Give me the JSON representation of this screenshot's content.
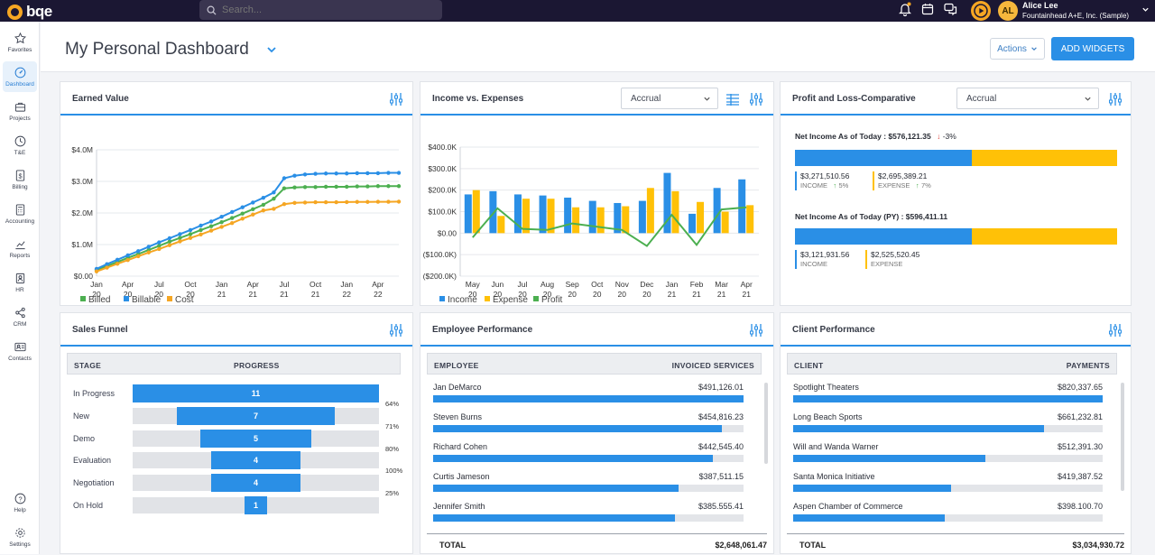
{
  "app": {
    "logo": "bqe",
    "search_placeholder": "Search...",
    "user_name": "Alice Lee",
    "company": "Fountainhead A+E, Inc. (Sample)",
    "initials": "AL"
  },
  "icons": {
    "notifications": "bell-icon",
    "calendar": "calendar-icon",
    "chat": "chat-icon",
    "play": "play-icon",
    "search": "search-icon"
  },
  "sidebar": {
    "items": [
      {
        "label": "Favorites",
        "icon": "star-icon"
      },
      {
        "label": "Dashboard",
        "icon": "dashboard-icon"
      },
      {
        "label": "Projects",
        "icon": "briefcase-icon"
      },
      {
        "label": "T&E",
        "icon": "clock-icon"
      },
      {
        "label": "Billing",
        "icon": "dollar-icon"
      },
      {
        "label": "Accounting",
        "icon": "calculator-icon"
      },
      {
        "label": "Reports",
        "icon": "chart-icon"
      },
      {
        "label": "HR",
        "icon": "id-badge-icon"
      },
      {
        "label": "CRM",
        "icon": "share-icon"
      },
      {
        "label": "Contacts",
        "icon": "contact-card-icon"
      }
    ],
    "bottom": [
      {
        "label": "Help",
        "icon": "help-icon"
      },
      {
        "label": "Settings",
        "icon": "gear-icon"
      }
    ]
  },
  "header": {
    "title": "My Personal Dashboard",
    "actions": "Actions",
    "add_widgets": "ADD WIDGETS"
  },
  "colors": {
    "accent": "#2a8fe6",
    "billed": "#4caf50",
    "billable": "#2a8fe6",
    "cost": "#f5a623",
    "income": "#2a8fe6",
    "expense": "#ffc107",
    "profit": "#4caf50",
    "dark": "#1b1733"
  },
  "widgets": {
    "earned_value": {
      "title": "Earned Value"
    },
    "income_expenses": {
      "title": "Income vs. Expenses",
      "basis": "Accrual"
    },
    "profit_loss": {
      "title": "Profit and Loss-Comparative",
      "basis": "Accrual",
      "current": {
        "label": "Net Income As of Today : $576,121.35",
        "change": "-3%",
        "income": "$3,271,510.56",
        "income_label": "INCOME",
        "income_change": "5%",
        "expense": "$2,695,389.21",
        "expense_label": "EXPENSE",
        "expense_change": "7%",
        "income_share": 0.55
      },
      "previous": {
        "label": "Net Income As of Today (PY) : $596,411.11",
        "income": "$3,121,931.56",
        "income_label": "INCOME",
        "expense": "$2,525,520.45",
        "expense_label": "EXPENSE",
        "income_share": 0.55
      }
    },
    "sales_funnel": {
      "title": "Sales Funnel",
      "col_stage": "STAGE",
      "col_progress": "PROGRESS",
      "rows": [
        {
          "stage": "In Progress",
          "count": "11",
          "pct": "64%",
          "fill": 1.0
        },
        {
          "stage": "New",
          "count": "7",
          "pct": "71%",
          "fill": 0.64
        },
        {
          "stage": "Demo",
          "count": "5",
          "pct": "80%",
          "fill": 0.45
        },
        {
          "stage": "Evaluation",
          "count": "4",
          "pct": "100%",
          "fill": 0.36
        },
        {
          "stage": "Negotiation",
          "count": "4",
          "pct": "25%",
          "fill": 0.36
        },
        {
          "stage": "On Hold",
          "count": "1",
          "pct": "",
          "fill": 0.09
        }
      ]
    },
    "employee_performance": {
      "title": "Employee Performance",
      "col_employee": "EMPLOYEE",
      "col_value": "INVOICED SERVICES",
      "rows": [
        {
          "name": "Jan DeMarco",
          "value": "$491,126.01",
          "fill": 1.0
        },
        {
          "name": "Steven Burns",
          "value": "$454,816.23",
          "fill": 0.93
        },
        {
          "name": "Richard Cohen",
          "value": "$442,545.40",
          "fill": 0.9
        },
        {
          "name": "Curtis Jameson",
          "value": "$387,511.15",
          "fill": 0.79
        },
        {
          "name": "Jennifer Smith",
          "value": "$385.555.41",
          "fill": 0.78
        }
      ],
      "total_label": "TOTAL",
      "total": "$2,648,061.47"
    },
    "client_performance": {
      "title": "Client Performance",
      "col_client": "CLIENT",
      "col_value": "PAYMENTS",
      "rows": [
        {
          "name": "Spotlight Theaters",
          "value": "$820,337.65",
          "fill": 1.0
        },
        {
          "name": "Long Beach Sports",
          "value": "$661,232.81",
          "fill": 0.81
        },
        {
          "name": "Will and Wanda Warner",
          "value": "$512,391.30",
          "fill": 0.62
        },
        {
          "name": "Santa Monica Initiative",
          "value": "$419,387.52",
          "fill": 0.51
        },
        {
          "name": "Aspen Chamber of Commerce",
          "value": "$398.100.70",
          "fill": 0.49
        }
      ],
      "total_label": "TOTAL",
      "total": "$3,034,930.72"
    }
  },
  "chart_data": [
    {
      "type": "line",
      "title": "Earned Value",
      "x": [
        "Jan 20",
        "Feb 20",
        "Mar 20",
        "Apr 20",
        "May 20",
        "Jun 20",
        "Jul 20",
        "Aug 20",
        "Sep 20",
        "Oct 20",
        "Nov 20",
        "Dec 20",
        "Jan 21",
        "Feb 21",
        "Mar 21",
        "Apr 21",
        "May 21",
        "Jun 21",
        "Jul 21",
        "Aug 21",
        "Sep 21",
        "Oct 21",
        "Nov 21",
        "Dec 21",
        "Jan 22",
        "Feb 22",
        "Mar 22",
        "Apr 22",
        "May 22",
        "Jun 22"
      ],
      "xticks": [
        "Jan 20",
        "Apr 20",
        "Jul 20",
        "Oct 20",
        "Jan 21",
        "Apr 21",
        "Jul 21",
        "Oct 21",
        "Jan 22",
        "Apr 22"
      ],
      "yticks": [
        "$0.00",
        "$1.0M",
        "$2.0M",
        "$3.0M",
        "$4.0M"
      ],
      "ylim": [
        0,
        4000000
      ],
      "series": [
        {
          "name": "Billed",
          "values": [
            200000,
            320000,
            450000,
            580000,
            700000,
            830000,
            960000,
            1090000,
            1210000,
            1330000,
            1460000,
            1580000,
            1710000,
            1840000,
            1980000,
            2120000,
            2260000,
            2450000,
            2780000,
            2810000,
            2820000,
            2820000,
            2830000,
            2830000,
            2830000,
            2840000,
            2840000,
            2850000,
            2850000,
            2850000
          ]
        },
        {
          "name": "Billable",
          "values": [
            230000,
            380000,
            520000,
            660000,
            790000,
            930000,
            1070000,
            1200000,
            1330000,
            1460000,
            1600000,
            1730000,
            1880000,
            2030000,
            2180000,
            2330000,
            2480000,
            2650000,
            3100000,
            3180000,
            3220000,
            3240000,
            3250000,
            3250000,
            3250000,
            3260000,
            3260000,
            3260000,
            3270000,
            3270000
          ]
        },
        {
          "name": "Cost",
          "values": [
            150000,
            270000,
            390000,
            510000,
            630000,
            750000,
            860000,
            980000,
            1100000,
            1210000,
            1320000,
            1440000,
            1560000,
            1680000,
            1820000,
            1950000,
            2080000,
            2130000,
            2280000,
            2320000,
            2330000,
            2340000,
            2340000,
            2340000,
            2345000,
            2350000,
            2350000,
            2355000,
            2355000,
            2360000
          ]
        }
      ]
    },
    {
      "type": "bar",
      "title": "Income vs. Expenses",
      "categories": [
        "May 20",
        "Jun 20",
        "Jul 20",
        "Aug 20",
        "Sep 20",
        "Oct 20",
        "Nov 20",
        "Dec 20",
        "Jan 21",
        "Feb 21",
        "Mar 21",
        "Apr 21"
      ],
      "yticks": [
        "($200.0K)",
        "($100.0K)",
        "$0.00",
        "$100.0K",
        "$200.0K",
        "$300.0K",
        "$400.0K"
      ],
      "ylim": [
        -200000,
        400000
      ],
      "series": [
        {
          "name": "Income",
          "type": "bar",
          "values": [
            180000,
            195000,
            180000,
            175000,
            165000,
            150000,
            140000,
            150000,
            280000,
            90000,
            210000,
            250000
          ]
        },
        {
          "name": "Expense",
          "type": "bar",
          "values": [
            200000,
            80000,
            160000,
            160000,
            120000,
            120000,
            125000,
            210000,
            195000,
            145000,
            100000,
            130000
          ]
        },
        {
          "name": "Profit",
          "type": "line",
          "values": [
            -20000,
            115000,
            20000,
            15000,
            45000,
            30000,
            15000,
            -60000,
            85000,
            -55000,
            110000,
            120000
          ]
        }
      ]
    }
  ]
}
